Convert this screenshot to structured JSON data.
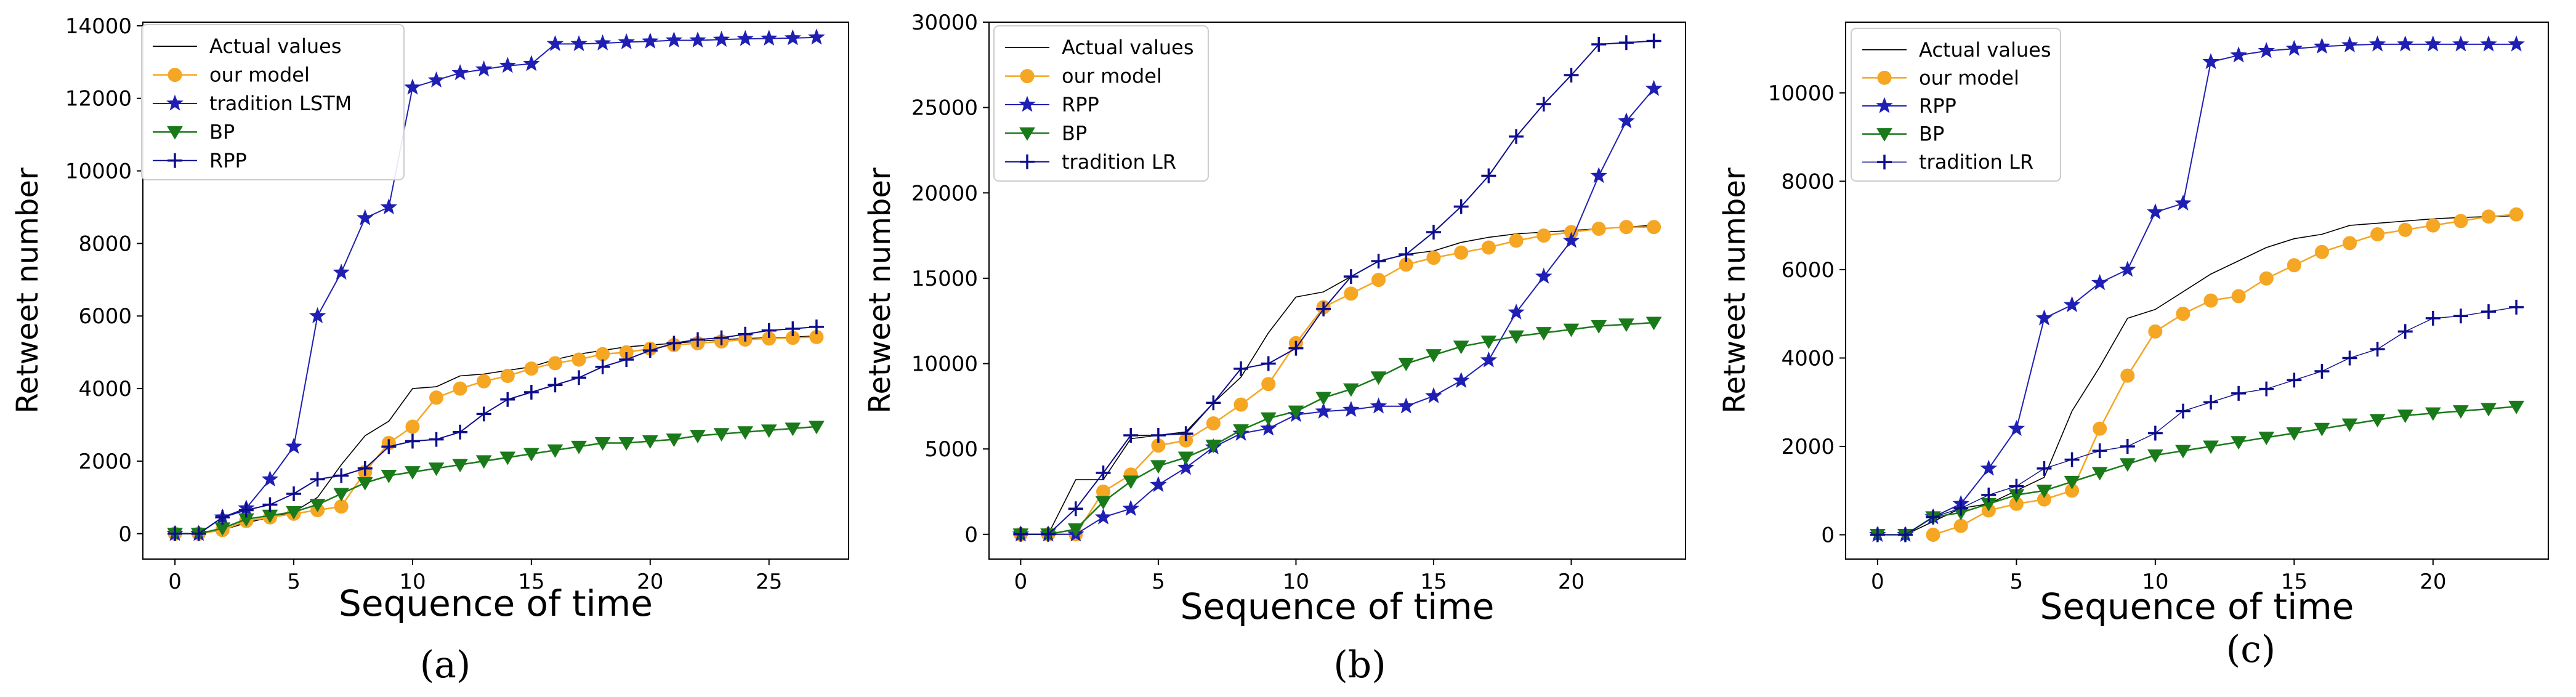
{
  "chart_data": [
    {
      "type": "line",
      "panel": "a",
      "caption": "(a)",
      "xlabel": "Sequence of time",
      "ylabel": "Retweet number",
      "xlim": [
        -1.35,
        28.35
      ],
      "ylim": [
        -700,
        14100
      ],
      "xticks": [
        0,
        5,
        10,
        15,
        20,
        25
      ],
      "xtick_labels": [
        "0",
        "5",
        "10",
        "15",
        "20",
        "25"
      ],
      "yticks": [
        0,
        2000,
        4000,
        6000,
        8000,
        10000,
        12000,
        14000
      ],
      "ytick_labels": [
        "0",
        "2000",
        "4000",
        "6000",
        "8000",
        "10000",
        "12000",
        "14000"
      ],
      "legend_position": "top-left",
      "series": [
        {
          "name": "Actual values",
          "color": "#000000",
          "marker": "none",
          "line_width": 1.6,
          "x": [
            0,
            1,
            2,
            3,
            4,
            5,
            6,
            7,
            8,
            9,
            10,
            11,
            12,
            13,
            14,
            15,
            16,
            17,
            18,
            19,
            20,
            21,
            22,
            23,
            24,
            25,
            26,
            27
          ],
          "values": [
            0,
            0,
            100,
            300,
            450,
            600,
            1000,
            1900,
            2700,
            3100,
            4000,
            4050,
            4350,
            4400,
            4500,
            4600,
            4800,
            4950,
            5050,
            5150,
            5200,
            5250,
            5300,
            5350,
            5380,
            5400,
            5420,
            5450
          ]
        },
        {
          "name": "our model",
          "color": "#f5a623",
          "marker": "circle",
          "line_width": 2.5,
          "x": [
            0,
            1,
            2,
            3,
            4,
            5,
            6,
            7,
            8,
            9,
            10,
            11,
            12,
            13,
            14,
            15,
            16,
            17,
            18,
            19,
            20,
            21,
            22,
            23,
            24,
            25,
            26,
            27
          ],
          "values": [
            0,
            0,
            100,
            350,
            450,
            550,
            650,
            750,
            1700,
            2500,
            2950,
            3750,
            4000,
            4200,
            4350,
            4550,
            4700,
            4800,
            4950,
            5000,
            5100,
            5200,
            5250,
            5300,
            5350,
            5380,
            5400,
            5420
          ]
        },
        {
          "name": "tradition LSTM",
          "color": "#1f1fb4",
          "marker": "star",
          "line_width": 2.0,
          "x": [
            0,
            1,
            2,
            3,
            4,
            5,
            6,
            7,
            8,
            9,
            10,
            11,
            12,
            13,
            14,
            15,
            16,
            17,
            18,
            19,
            20,
            21,
            22,
            23,
            24,
            25,
            26,
            27
          ],
          "values": [
            0,
            0,
            450,
            700,
            1500,
            2400,
            6000,
            7200,
            8700,
            9000,
            12300,
            12500,
            12700,
            12800,
            12900,
            12950,
            13500,
            13500,
            13520,
            13550,
            13570,
            13600,
            13600,
            13620,
            13640,
            13650,
            13660,
            13680
          ]
        },
        {
          "name": "BP",
          "color": "#1a7a1a",
          "marker": "triangle-down",
          "line_width": 2.5,
          "x": [
            0,
            1,
            2,
            3,
            4,
            5,
            6,
            7,
            8,
            9,
            10,
            11,
            12,
            13,
            14,
            15,
            16,
            17,
            18,
            19,
            20,
            21,
            22,
            23,
            24,
            25,
            26,
            27
          ],
          "values": [
            0,
            0,
            150,
            400,
            500,
            600,
            800,
            1100,
            1400,
            1600,
            1700,
            1800,
            1900,
            2000,
            2100,
            2200,
            2300,
            2400,
            2500,
            2500,
            2550,
            2600,
            2700,
            2750,
            2800,
            2850,
            2900,
            2950
          ]
        },
        {
          "name": "RPP",
          "color": "#0d0d8c",
          "marker": "plus",
          "line_width": 2.0,
          "x": [
            0,
            1,
            2,
            3,
            4,
            5,
            6,
            7,
            8,
            9,
            10,
            11,
            12,
            13,
            14,
            15,
            16,
            17,
            18,
            19,
            20,
            21,
            22,
            23,
            24,
            25,
            26,
            27
          ],
          "values": [
            0,
            0,
            450,
            650,
            800,
            1100,
            1500,
            1600,
            1800,
            2400,
            2550,
            2600,
            2800,
            3300,
            3700,
            3900,
            4100,
            4300,
            4600,
            4800,
            5050,
            5250,
            5350,
            5400,
            5500,
            5600,
            5650,
            5700
          ]
        }
      ]
    },
    {
      "type": "line",
      "panel": "b",
      "caption": "(b)",
      "xlabel": "Sequence of time",
      "ylabel": "Retweet number",
      "xlim": [
        -1.15,
        24.15
      ],
      "ylim": [
        -1450,
        30000
      ],
      "xticks": [
        0,
        5,
        10,
        15,
        20
      ],
      "xtick_labels": [
        "0",
        "5",
        "10",
        "15",
        "20"
      ],
      "yticks": [
        0,
        5000,
        10000,
        15000,
        20000,
        25000,
        30000
      ],
      "ytick_labels": [
        "0",
        "5000",
        "10000",
        "15000",
        "20000",
        "25000",
        "30000"
      ],
      "legend_position": "top-left",
      "series": [
        {
          "name": "Actual values",
          "color": "#000000",
          "marker": "none",
          "line_width": 1.6,
          "x": [
            0,
            1,
            2,
            3,
            4,
            5,
            6,
            7,
            8,
            9,
            10,
            11,
            12,
            13,
            14,
            15,
            16,
            17,
            18,
            19,
            20,
            21,
            22,
            23
          ],
          "values": [
            0,
            0,
            3200,
            3200,
            5600,
            5800,
            6000,
            7700,
            9200,
            11800,
            13900,
            14200,
            15100,
            16000,
            16400,
            16600,
            17100,
            17400,
            17600,
            17700,
            17800,
            17900,
            18000,
            18100
          ]
        },
        {
          "name": "our model",
          "color": "#f5a623",
          "marker": "circle",
          "line_width": 2.5,
          "x": [
            0,
            1,
            2,
            3,
            4,
            5,
            6,
            7,
            8,
            9,
            10,
            11,
            12,
            13,
            14,
            15,
            16,
            17,
            18,
            19,
            20,
            21,
            22,
            23
          ],
          "values": [
            0,
            0,
            0,
            2500,
            3500,
            5200,
            5500,
            6500,
            7600,
            8800,
            11200,
            13300,
            14100,
            14900,
            15800,
            16200,
            16500,
            16800,
            17200,
            17500,
            17700,
            17900,
            18000,
            18000
          ]
        },
        {
          "name": "RPP",
          "color": "#1f1fb4",
          "marker": "star",
          "line_width": 2.0,
          "x": [
            0,
            1,
            2,
            3,
            4,
            5,
            6,
            7,
            8,
            9,
            10,
            11,
            12,
            13,
            14,
            15,
            16,
            17,
            18,
            19,
            20,
            21,
            22,
            23
          ],
          "values": [
            0,
            0,
            0,
            1000,
            1500,
            2900,
            3900,
            5100,
            5900,
            6200,
            7000,
            7200,
            7300,
            7500,
            7500,
            8100,
            9000,
            10200,
            13000,
            15100,
            17200,
            21000,
            24200,
            26100
          ]
        },
        {
          "name": "BP",
          "color": "#1a7a1a",
          "marker": "triangle-down",
          "line_width": 2.5,
          "x": [
            0,
            1,
            2,
            3,
            4,
            5,
            6,
            7,
            8,
            9,
            10,
            11,
            12,
            13,
            14,
            15,
            16,
            17,
            18,
            19,
            20,
            21,
            22,
            23
          ],
          "values": [
            0,
            0,
            300,
            1900,
            3100,
            4000,
            4500,
            5200,
            6100,
            6800,
            7200,
            8000,
            8500,
            9200,
            10000,
            10500,
            11000,
            11300,
            11600,
            11800,
            12000,
            12200,
            12300,
            12400
          ]
        },
        {
          "name": "tradition LR",
          "color": "#0d0d8c",
          "marker": "plus",
          "line_width": 2.0,
          "x": [
            0,
            1,
            2,
            3,
            4,
            5,
            6,
            7,
            8,
            9,
            10,
            11,
            12,
            13,
            14,
            15,
            16,
            17,
            18,
            19,
            20,
            21,
            22,
            23
          ],
          "values": [
            0,
            0,
            1500,
            3600,
            5800,
            5800,
            5900,
            7700,
            9700,
            10000,
            10900,
            13200,
            15100,
            16000,
            16400,
            17700,
            19200,
            21000,
            23300,
            25200,
            26900,
            28700,
            28800,
            28900
          ]
        }
      ]
    },
    {
      "type": "line",
      "panel": "c",
      "caption": "(c)",
      "xlabel": "Sequence of time",
      "ylabel": "Retweet number",
      "xlim": [
        -1.15,
        24.15
      ],
      "ylim": [
        -550,
        11600
      ],
      "xticks": [
        0,
        5,
        10,
        15,
        20
      ],
      "xtick_labels": [
        "0",
        "5",
        "10",
        "15",
        "20"
      ],
      "yticks": [
        0,
        2000,
        4000,
        6000,
        8000,
        10000
      ],
      "ytick_labels": [
        "0",
        "2000",
        "4000",
        "6000",
        "8000",
        "10000"
      ],
      "legend_position": "top-left",
      "series": [
        {
          "name": "Actual values",
          "color": "#000000",
          "marker": "none",
          "line_width": 1.6,
          "x": [
            0,
            1,
            2,
            3,
            4,
            5,
            6,
            7,
            8,
            9,
            10,
            11,
            12,
            13,
            14,
            15,
            16,
            17,
            18,
            19,
            20,
            21,
            22,
            23
          ],
          "values": [
            0,
            0,
            300,
            600,
            700,
            1000,
            1300,
            2800,
            3800,
            4900,
            5100,
            5500,
            5900,
            6200,
            6500,
            6700,
            6800,
            7000,
            7050,
            7100,
            7150,
            7180,
            7200,
            7220
          ]
        },
        {
          "name": "our model",
          "color": "#f5a623",
          "marker": "circle",
          "line_width": 2.5,
          "x": [
            2,
            3,
            4,
            5,
            6,
            7,
            8,
            9,
            10,
            11,
            12,
            13,
            14,
            15,
            16,
            17,
            18,
            19,
            20,
            21,
            22,
            23
          ],
          "values": [
            0,
            200,
            550,
            700,
            800,
            1000,
            2400,
            3600,
            4600,
            5000,
            5300,
            5400,
            5800,
            6100,
            6400,
            6600,
            6800,
            6900,
            7000,
            7100,
            7200,
            7250
          ]
        },
        {
          "name": "RPP",
          "color": "#1f1fb4",
          "marker": "star",
          "line_width": 2.0,
          "x": [
            0,
            1,
            2,
            3,
            4,
            5,
            6,
            7,
            8,
            9,
            10,
            11,
            12,
            13,
            14,
            15,
            16,
            17,
            18,
            19,
            20,
            21,
            22,
            23
          ],
          "values": [
            0,
            0,
            400,
            700,
            1500,
            2400,
            4900,
            5200,
            5700,
            6000,
            7300,
            7500,
            10700,
            10850,
            10950,
            11000,
            11050,
            11080,
            11100,
            11100,
            11100,
            11100,
            11100,
            11100
          ]
        },
        {
          "name": "BP",
          "color": "#1a7a1a",
          "marker": "triangle-down",
          "line_width": 2.5,
          "x": [
            0,
            1,
            2,
            3,
            4,
            5,
            6,
            7,
            8,
            9,
            10,
            11,
            12,
            13,
            14,
            15,
            16,
            17,
            18,
            19,
            20,
            21,
            22,
            23
          ],
          "values": [
            0,
            0,
            400,
            500,
            700,
            900,
            1000,
            1200,
            1400,
            1600,
            1800,
            1900,
            2000,
            2100,
            2200,
            2300,
            2400,
            2500,
            2600,
            2700,
            2750,
            2800,
            2850,
            2900
          ]
        },
        {
          "name": "tradition LR",
          "color": "#0d0d8c",
          "marker": "plus",
          "line_width": 1.4,
          "x": [
            0,
            1,
            2,
            3,
            4,
            5,
            6,
            7,
            8,
            9,
            10,
            11,
            12,
            13,
            14,
            15,
            16,
            17,
            18,
            19,
            20,
            21,
            22,
            23
          ],
          "values": [
            0,
            0,
            400,
            600,
            900,
            1100,
            1500,
            1700,
            1900,
            2000,
            2300,
            2800,
            3000,
            3200,
            3300,
            3500,
            3700,
            4000,
            4200,
            4600,
            4900,
            4950,
            5050,
            5150
          ]
        }
      ]
    }
  ]
}
